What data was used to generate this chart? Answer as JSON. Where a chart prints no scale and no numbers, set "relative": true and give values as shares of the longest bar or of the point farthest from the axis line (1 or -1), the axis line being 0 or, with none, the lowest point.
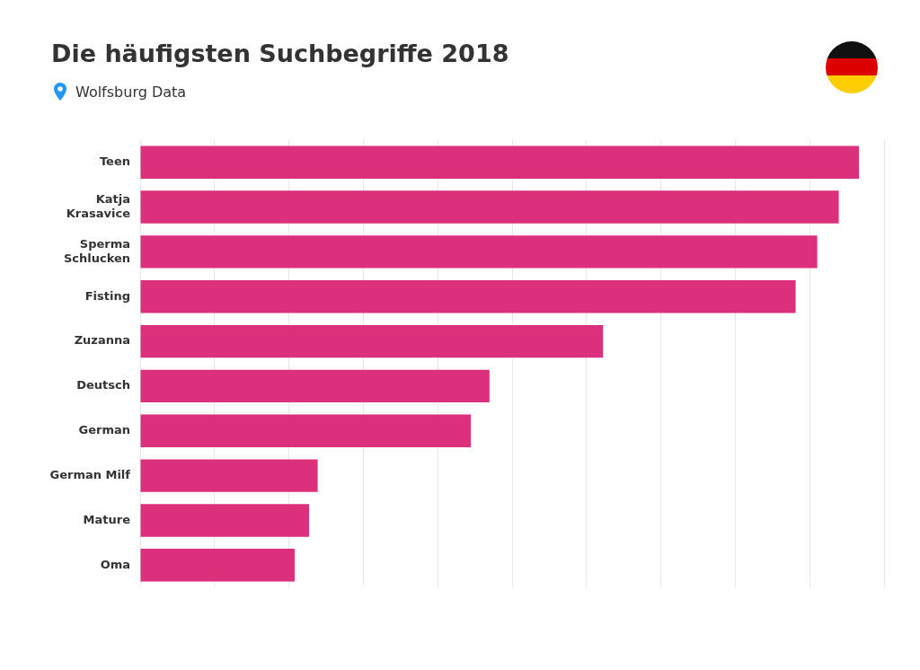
{
  "chart_data": {
    "type": "bar",
    "title": "Die häufigsten Suchbegriffe 2018",
    "subtitle": "Wolfsburg Data",
    "orientation": "horizontal",
    "relative": true,
    "grid": "x",
    "legend": false,
    "categories": [
      "Teen",
      "Katja Krasavice",
      "Sperma Schlucken",
      "Fisting",
      "Zuzanna",
      "Deutsch",
      "German",
      "German Milf",
      "Mature",
      "Oma"
    ],
    "values": [
      1,
      0.972,
      0.942,
      0.912,
      0.644,
      0.486,
      0.46,
      0.247,
      0.235,
      0.215
    ],
    "color": "#dc2f7c"
  }
}
